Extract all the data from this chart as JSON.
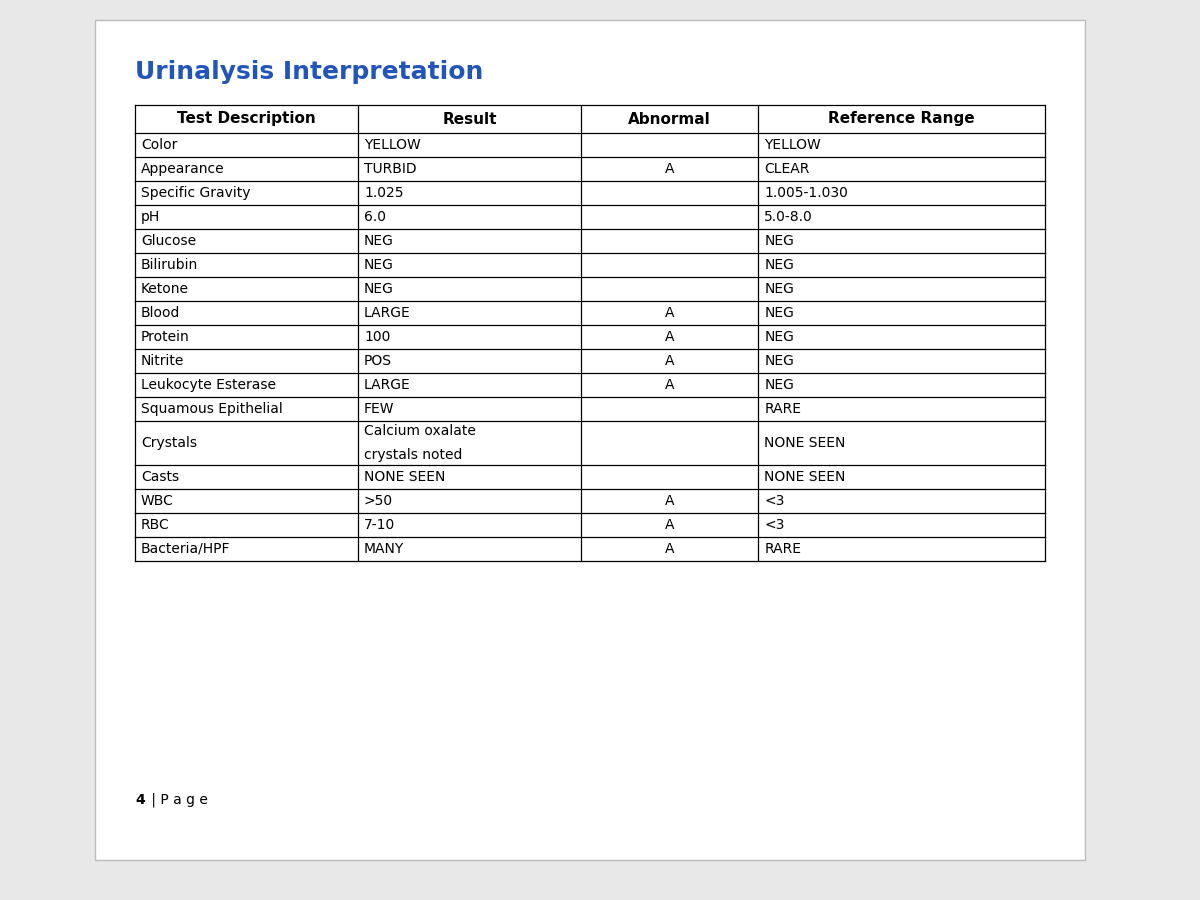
{
  "title": "Urinalysis Interpretation",
  "title_color": "#2255BB",
  "title_fontsize": 18,
  "header": [
    "Test Description",
    "Result",
    "Abnormal",
    "Reference Range"
  ],
  "rows": [
    [
      "Color",
      "YELLOW",
      "",
      "YELLOW"
    ],
    [
      "Appearance",
      "TURBID",
      "A",
      "CLEAR"
    ],
    [
      "Specific Gravity",
      "1.025",
      "",
      "1.005-1.030"
    ],
    [
      "pH",
      "6.0",
      "",
      "5.0-8.0"
    ],
    [
      "Glucose",
      "NEG",
      "",
      "NEG"
    ],
    [
      "Bilirubin",
      "NEG",
      "",
      "NEG"
    ],
    [
      "Ketone",
      "NEG",
      "",
      "NEG"
    ],
    [
      "Blood",
      "LARGE",
      "A",
      "NEG"
    ],
    [
      "Protein",
      "100",
      "A",
      "NEG"
    ],
    [
      "Nitrite",
      "POS",
      "A",
      "NEG"
    ],
    [
      "Leukocyte Esterase",
      "LARGE",
      "A",
      "NEG"
    ],
    [
      "Squamous Epithelial",
      "FEW",
      "",
      "RARE"
    ],
    [
      "Crystals",
      "Calcium oxalate\ncrystals noted",
      "",
      "NONE SEEN"
    ],
    [
      "Casts",
      "NONE SEEN",
      "",
      "NONE SEEN"
    ],
    [
      "WBC",
      ">50",
      "A",
      "<3"
    ],
    [
      "RBC",
      "7-10",
      "A",
      "<3"
    ],
    [
      "Bacteria/HPF",
      "MANY",
      "A",
      "RARE"
    ]
  ],
  "page_bg": "#e8e8e8",
  "page_white_bg": "#ffffff",
  "border_color": "#000000",
  "text_color": "#000000",
  "font_size": 10,
  "header_font_size": 11,
  "page_label": "4 | P a g e",
  "page_label_bold": "4",
  "page_label_normal": " | P a g e"
}
